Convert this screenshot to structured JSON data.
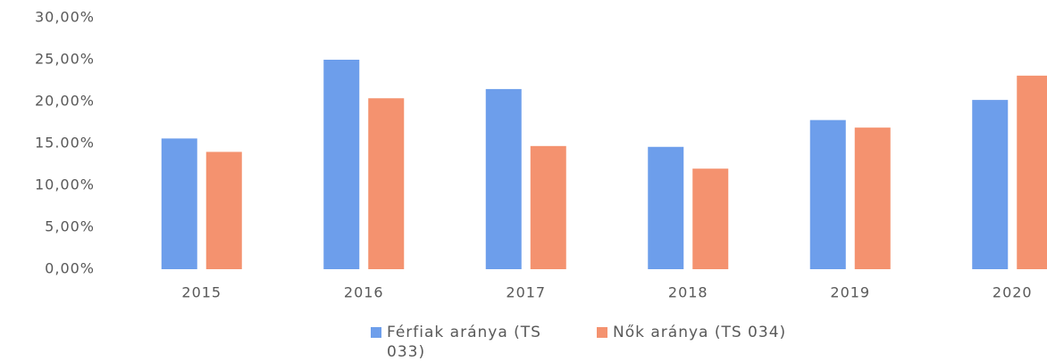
{
  "chart_data": {
    "type": "bar",
    "categories": [
      "2015",
      "2016",
      "2017",
      "2018",
      "2019",
      "2020"
    ],
    "series": [
      {
        "name": "Férfiak aránya (TS 033)",
        "color": "#6d9eeb",
        "values": [
          15.6,
          25.0,
          21.5,
          14.6,
          17.8,
          20.2
        ]
      },
      {
        "name": "Nők aránya (TS 034)",
        "color": "#f4926f",
        "values": [
          14.0,
          20.4,
          14.7,
          12.0,
          16.9,
          23.1
        ]
      }
    ],
    "ylim": [
      0,
      30
    ],
    "yticks": [
      {
        "value": 0,
        "label": "0,00%"
      },
      {
        "value": 5,
        "label": "5,00%"
      },
      {
        "value": 10,
        "label": "10,00%"
      },
      {
        "value": 15,
        "label": "15.00%"
      },
      {
        "value": 20,
        "label": "20,00%"
      },
      {
        "value": 25,
        "label": "25,00%"
      },
      {
        "value": 30,
        "label": "30,00%"
      }
    ],
    "grid": false,
    "legend": "bottom"
  }
}
